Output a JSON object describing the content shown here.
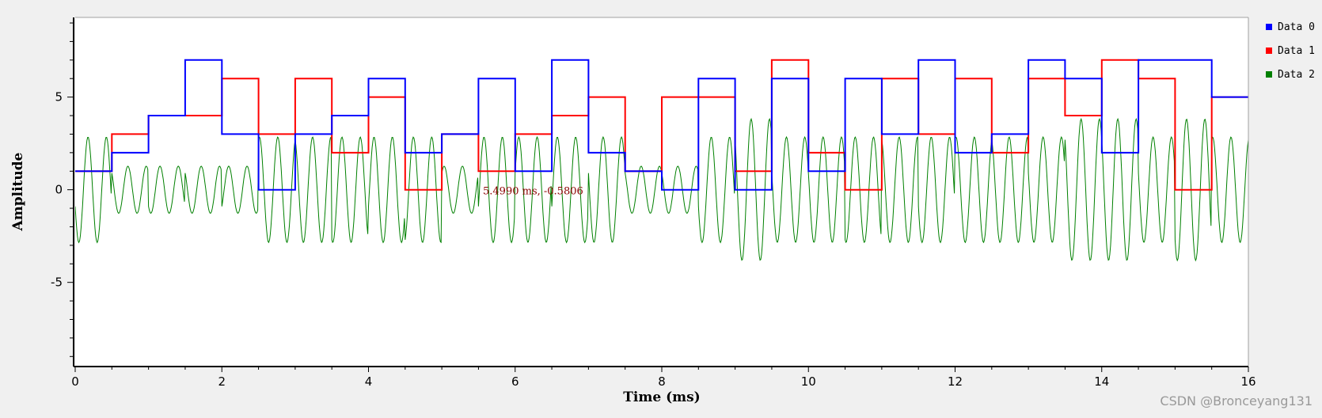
{
  "chart_data": {
    "type": "line",
    "xlabel": "Time (ms)",
    "ylabel": "Amplitude",
    "xlim": [
      0,
      16
    ],
    "ylim": [
      -9.5,
      9.3
    ],
    "grid": false,
    "legend_placement": "top-right",
    "x_ticks": [
      0,
      2,
      4,
      6,
      8,
      10,
      12,
      14,
      16
    ],
    "y_ticks": [
      -5,
      0,
      5
    ],
    "series": [
      {
        "name": "Data 0",
        "color": "#0000ff",
        "style": "step",
        "segment_width": 0.5,
        "values": [
          1,
          2,
          4,
          7,
          3,
          0,
          3,
          4,
          6,
          2,
          3,
          6,
          1,
          7,
          2,
          1,
          0,
          6,
          0,
          6,
          1,
          6,
          3,
          7,
          2,
          3,
          7,
          6,
          2,
          7,
          7,
          5
        ]
      },
      {
        "name": "Data 1",
        "color": "#ff0000",
        "style": "step",
        "segment_width": 0.5,
        "values": [
          1,
          3,
          4,
          4,
          6,
          3,
          6,
          2,
          5,
          0,
          3,
          1,
          3,
          4,
          5,
          1,
          5,
          5,
          1,
          7,
          2,
          0,
          6,
          3,
          6,
          2,
          6,
          4,
          7,
          6,
          0,
          5
        ]
      },
      {
        "name": "Data 2",
        "color": "#008000",
        "style": "line",
        "description_type": "modulated_signal",
        "carrier_cycles_per_ms": 4,
        "sample_step_ms": 0.01,
        "symbol_width": 0.5,
        "symbols_re": [
          -1,
          1,
          -1,
          1,
          -1,
          3,
          3,
          -3,
          -1,
          -3,
          1,
          -1,
          1,
          -1,
          1,
          1,
          1,
          -1,
          3,
          1,
          1,
          -3,
          3,
          -1,
          3,
          3,
          1,
          3,
          3,
          1,
          -3,
          3
        ],
        "symbols_im": [
          3,
          1,
          1,
          1,
          -1,
          -1,
          1,
          1,
          -3,
          -1,
          -1,
          -3,
          -3,
          -3,
          3,
          1,
          1,
          3,
          3,
          3,
          3,
          1,
          1,
          3,
          -1,
          1,
          3,
          3,
          3,
          3,
          3,
          -1
        ]
      }
    ],
    "annotation": {
      "text": "5.4990 ms, -0.5806"
    }
  },
  "watermark": "CSDN @Bronceyang131"
}
